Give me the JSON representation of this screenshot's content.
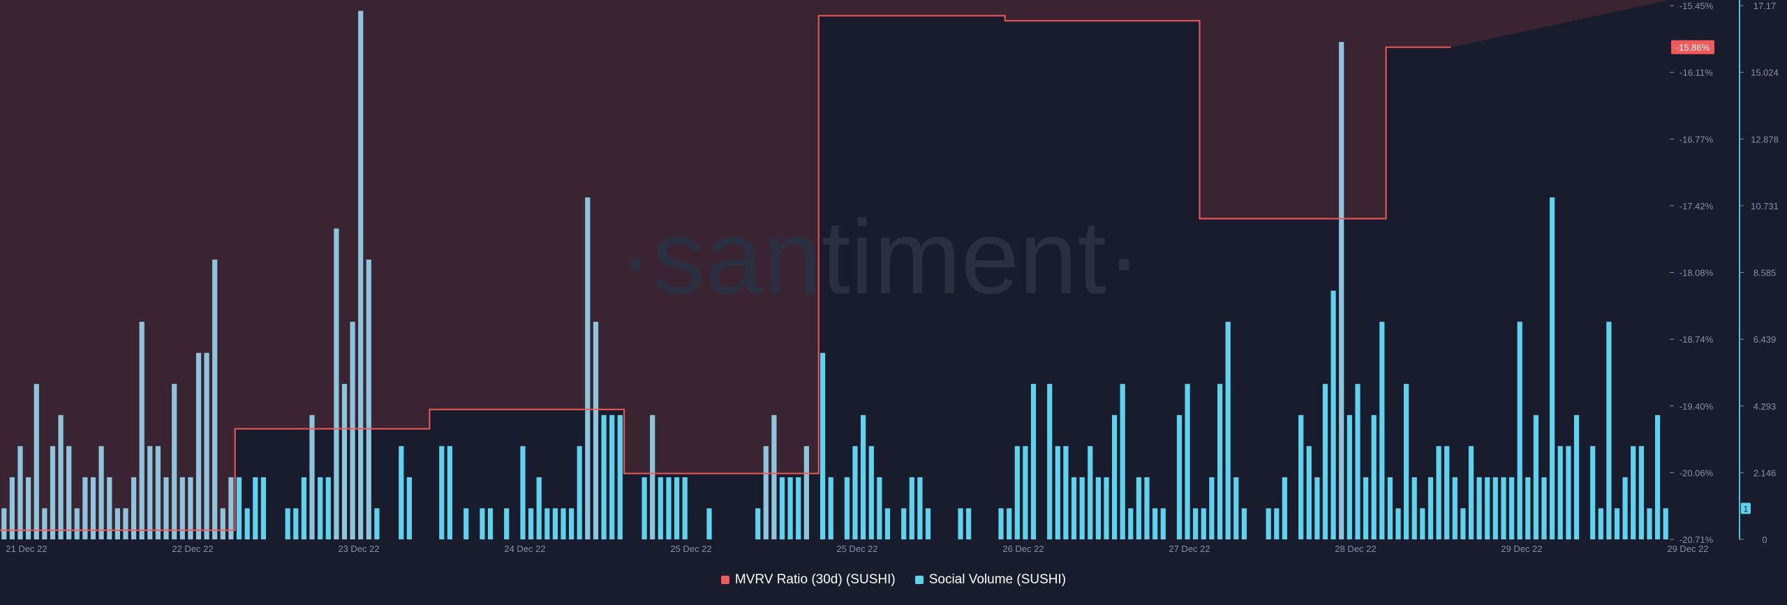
{
  "colors": {
    "background": "#191c2c",
    "negative_zone": "#3a2431",
    "mvrv_line": "#f05a5a",
    "volume_bar": "#5fd2ee",
    "volume_bar_pale": "#8ec5dc",
    "axis_text": "#8a90a6",
    "right_axis_line": "#3ec7e6",
    "watermark": "#2b2f42"
  },
  "watermark": "·santiment·",
  "legend": [
    {
      "label": "MVRV Ratio (30d) (SUSHI)",
      "color": "#f05a5a"
    },
    {
      "label": "Social Volume (SUSHI)",
      "color": "#5fd2ee"
    }
  ],
  "chart_data": {
    "type": "bar",
    "x_tick_labels": [
      "21 Dec 22",
      "22 Dec 22",
      "23 Dec 22",
      "24 Dec 22",
      "25 Dec 22",
      "25 Dec 22",
      "26 Dec 22",
      "27 Dec 22",
      "28 Dec 22",
      "29 Dec 22",
      "29 Dec 22"
    ],
    "mvrv_axis": {
      "ticks": [
        "-15.45%",
        "-16.11%",
        "-16.77%",
        "-17.42%",
        "-18.08%",
        "-18.74%",
        "-19.40%",
        "-20.06%",
        "-20.71%"
      ],
      "ylim": [
        -20.71,
        -15.45
      ],
      "current_value_label": "-15.86%"
    },
    "volume_axis": {
      "ticks": [
        "17.17",
        "15.024",
        "12.878",
        "10.731",
        "8.585",
        "6.439",
        "4.293",
        "2.146",
        "0"
      ],
      "ylim": [
        0,
        17.17
      ],
      "current_value_label": "1"
    },
    "series": [
      {
        "name": "MVRV Ratio (30d) (SUSHI)",
        "type": "line",
        "values": [
          -20.62,
          -20.62,
          -20.62,
          -20.62,
          -20.62,
          -20.62,
          -20.62,
          -20.62,
          -20.62,
          -20.62,
          -20.62,
          -20.62,
          -20.62,
          -20.62,
          -20.62,
          -20.62,
          -20.62,
          -20.62,
          -20.62,
          -20.62,
          -20.62,
          -20.62,
          -20.62,
          -20.62,
          -20.62,
          -20.62,
          -20.62,
          -20.62,
          -20.62,
          -19.62,
          -19.62,
          -19.62,
          -19.62,
          -19.62,
          -19.62,
          -19.62,
          -19.62,
          -19.62,
          -19.62,
          -19.62,
          -19.62,
          -19.62,
          -19.62,
          -19.62,
          -19.62,
          -19.62,
          -19.62,
          -19.62,
          -19.62,
          -19.62,
          -19.62,
          -19.62,
          -19.62,
          -19.43,
          -19.43,
          -19.43,
          -19.43,
          -19.43,
          -19.43,
          -19.43,
          -19.43,
          -19.43,
          -19.43,
          -19.43,
          -19.43,
          -19.43,
          -19.43,
          -19.43,
          -19.43,
          -19.43,
          -19.43,
          -19.43,
          -19.43,
          -19.43,
          -19.43,
          -19.43,
          -19.43,
          -20.06,
          -20.06,
          -20.06,
          -20.06,
          -20.06,
          -20.06,
          -20.06,
          -20.06,
          -20.06,
          -20.06,
          -20.06,
          -20.06,
          -20.06,
          -20.06,
          -20.06,
          -20.06,
          -20.06,
          -20.06,
          -20.06,
          -20.06,
          -20.06,
          -20.06,
          -20.06,
          -20.06,
          -15.55,
          -15.55,
          -15.55,
          -15.55,
          -15.55,
          -15.55,
          -15.55,
          -15.55,
          -15.55,
          -15.55,
          -15.55,
          -15.55,
          -15.55,
          -15.55,
          -15.55,
          -15.55,
          -15.55,
          -15.55,
          -15.55,
          -15.55,
          -15.55,
          -15.55,
          -15.55,
          -15.6,
          -15.6,
          -15.6,
          -15.6,
          -15.6,
          -15.6,
          -15.6,
          -15.6,
          -15.6,
          -15.6,
          -15.6,
          -15.6,
          -15.6,
          -15.6,
          -15.6,
          -15.6,
          -15.6,
          -15.6,
          -15.6,
          -15.6,
          -15.6,
          -15.6,
          -15.6,
          -15.6,
          -17.55,
          -17.55,
          -17.55,
          -17.55,
          -17.55,
          -17.55,
          -17.55,
          -17.55,
          -17.55,
          -17.55,
          -17.55,
          -17.55,
          -17.55,
          -17.55,
          -17.55,
          -17.55,
          -17.55,
          -17.55,
          -17.55,
          -17.55,
          -17.55,
          -17.55,
          -17.55,
          -15.86,
          -15.86,
          -15.86,
          -15.86,
          -15.86,
          -15.86,
          -15.86,
          -15.86
        ]
      },
      {
        "name": "Social Volume (SUSHI)",
        "type": "bar",
        "values": [
          1,
          2,
          3,
          2,
          5,
          1,
          3,
          4,
          3,
          1,
          2,
          2,
          3,
          2,
          1,
          1,
          2,
          7,
          3,
          3,
          2,
          5,
          2,
          2,
          6,
          6,
          9,
          1,
          2,
          2,
          1,
          2,
          2,
          0,
          0,
          1,
          1,
          2,
          4,
          2,
          2,
          10,
          5,
          7,
          17,
          9,
          1,
          0,
          0,
          3,
          2,
          0,
          0,
          0,
          3,
          3,
          0,
          1,
          0,
          1,
          1,
          0,
          1,
          0,
          3,
          1,
          2,
          1,
          1,
          1,
          1,
          3,
          11,
          7,
          4,
          4,
          4,
          0,
          0,
          2,
          4,
          2,
          2,
          2,
          2,
          0,
          0,
          1,
          0,
          0,
          0,
          0,
          0,
          1,
          3,
          4,
          2,
          2,
          2,
          3,
          0,
          6,
          2,
          0,
          2,
          3,
          4,
          3,
          2,
          1,
          0,
          1,
          2,
          2,
          1,
          0,
          0,
          0,
          1,
          1,
          0,
          0,
          0,
          1,
          1,
          3,
          3,
          5,
          0,
          5,
          3,
          3,
          2,
          2,
          3,
          2,
          2,
          4,
          5,
          1,
          2,
          2,
          1,
          1,
          0,
          4,
          5,
          1,
          1,
          2,
          5,
          7,
          2,
          1,
          0,
          0,
          1,
          1,
          2,
          0,
          4,
          3,
          2,
          5,
          8,
          16,
          4,
          5,
          2,
          4,
          7,
          2,
          1,
          5,
          2,
          1,
          2,
          3,
          3,
          2,
          1,
          3,
          2,
          2,
          2,
          2,
          2,
          7,
          2,
          4,
          2,
          11,
          3,
          3,
          4,
          0,
          3,
          1,
          7,
          1,
          2,
          3,
          3,
          1,
          4,
          1
        ]
      }
    ]
  }
}
